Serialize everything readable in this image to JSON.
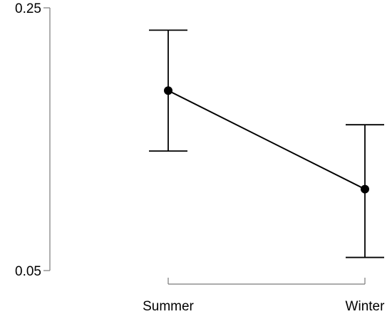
{
  "chart_data": {
    "type": "line",
    "categories": [
      "Summer",
      "Winter"
    ],
    "series": [
      {
        "values": [
          0.187,
          0.112
        ],
        "error_low": [
          0.141,
          0.06
        ],
        "error_high": [
          0.233,
          0.161
        ]
      }
    ],
    "ylim": [
      0.05,
      0.25
    ],
    "y_tick_labels": [
      "0.05",
      "0.25"
    ],
    "x_tick_labels": [
      "Summer",
      "Winter"
    ],
    "grid": false,
    "colors": {
      "line": "#000000",
      "axis": "#7a7a7a",
      "point": "#000000"
    }
  }
}
